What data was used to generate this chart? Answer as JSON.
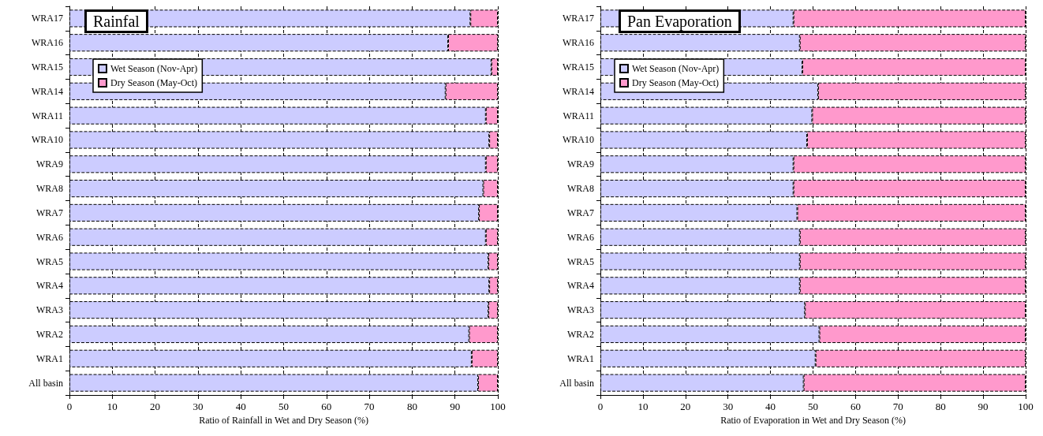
{
  "chart_data": [
    {
      "type": "bar",
      "orientation": "horizontal",
      "stacked": true,
      "title": "Rainfal",
      "xlabel": "Ratio of Rainfall in Wet and Dry Season (%)",
      "categories": [
        "WRA17",
        "WRA16",
        "WRA15",
        "WRA14",
        "WRA11",
        "WRA10",
        "WRA9",
        "WRA8",
        "WRA7",
        "WRA6",
        "WRA5",
        "WRA4",
        "WRA3",
        "WRA2",
        "WRA1",
        "All basin"
      ],
      "series": [
        {
          "name": "Wet Season (Nov-Apr)",
          "color": "#ccccff",
          "values": [
            93.6,
            88.4,
            98.5,
            87.8,
            97.2,
            98.0,
            97.2,
            96.6,
            95.6,
            97.2,
            97.8,
            98.0,
            97.8,
            93.3,
            93.9,
            95.4
          ]
        },
        {
          "name": "Dry Season (May-Oct)",
          "color": "#ff99cc",
          "values": [
            6.4,
            11.6,
            1.5,
            12.2,
            2.8,
            2.0,
            2.8,
            3.4,
            4.4,
            2.8,
            2.2,
            2.0,
            2.2,
            6.7,
            6.1,
            4.6
          ]
        }
      ],
      "xlim": [
        0,
        100
      ],
      "xticks": [
        0,
        10,
        20,
        30,
        40,
        50,
        60,
        70,
        80,
        90,
        100
      ],
      "grid": "x",
      "legend": "top left"
    },
    {
      "type": "bar",
      "orientation": "horizontal",
      "stacked": true,
      "title": "Pan Evaporation",
      "xlabel": "Ratio of Evaporation in Wet and Dry Season (%)",
      "categories": [
        "WRA17",
        "WRA16",
        "WRA15",
        "WRA14",
        "WRA11",
        "WRA10",
        "WRA9",
        "WRA8",
        "WRA7",
        "WRA6",
        "WRA5",
        "WRA4",
        "WRA3",
        "WRA2",
        "WRA1",
        "All basin"
      ],
      "series": [
        {
          "name": "Wet Season (Nov-Apr)",
          "color": "#ccccff",
          "values": [
            45.4,
            46.9,
            47.5,
            51.2,
            49.8,
            48.6,
            45.4,
            45.4,
            46.3,
            46.9,
            46.9,
            46.9,
            48.1,
            51.5,
            50.6,
            47.8
          ]
        },
        {
          "name": "Dry Season (May-Oct)",
          "color": "#ff99cc",
          "values": [
            54.6,
            53.1,
            52.5,
            48.8,
            50.2,
            51.4,
            54.6,
            54.6,
            53.7,
            53.1,
            53.1,
            53.1,
            51.9,
            48.5,
            49.4,
            52.2
          ]
        }
      ],
      "xlim": [
        0,
        100
      ],
      "xticks": [
        0,
        10,
        20,
        30,
        40,
        50,
        60,
        70,
        80,
        90,
        100
      ],
      "grid": "x",
      "legend": "top left"
    }
  ]
}
